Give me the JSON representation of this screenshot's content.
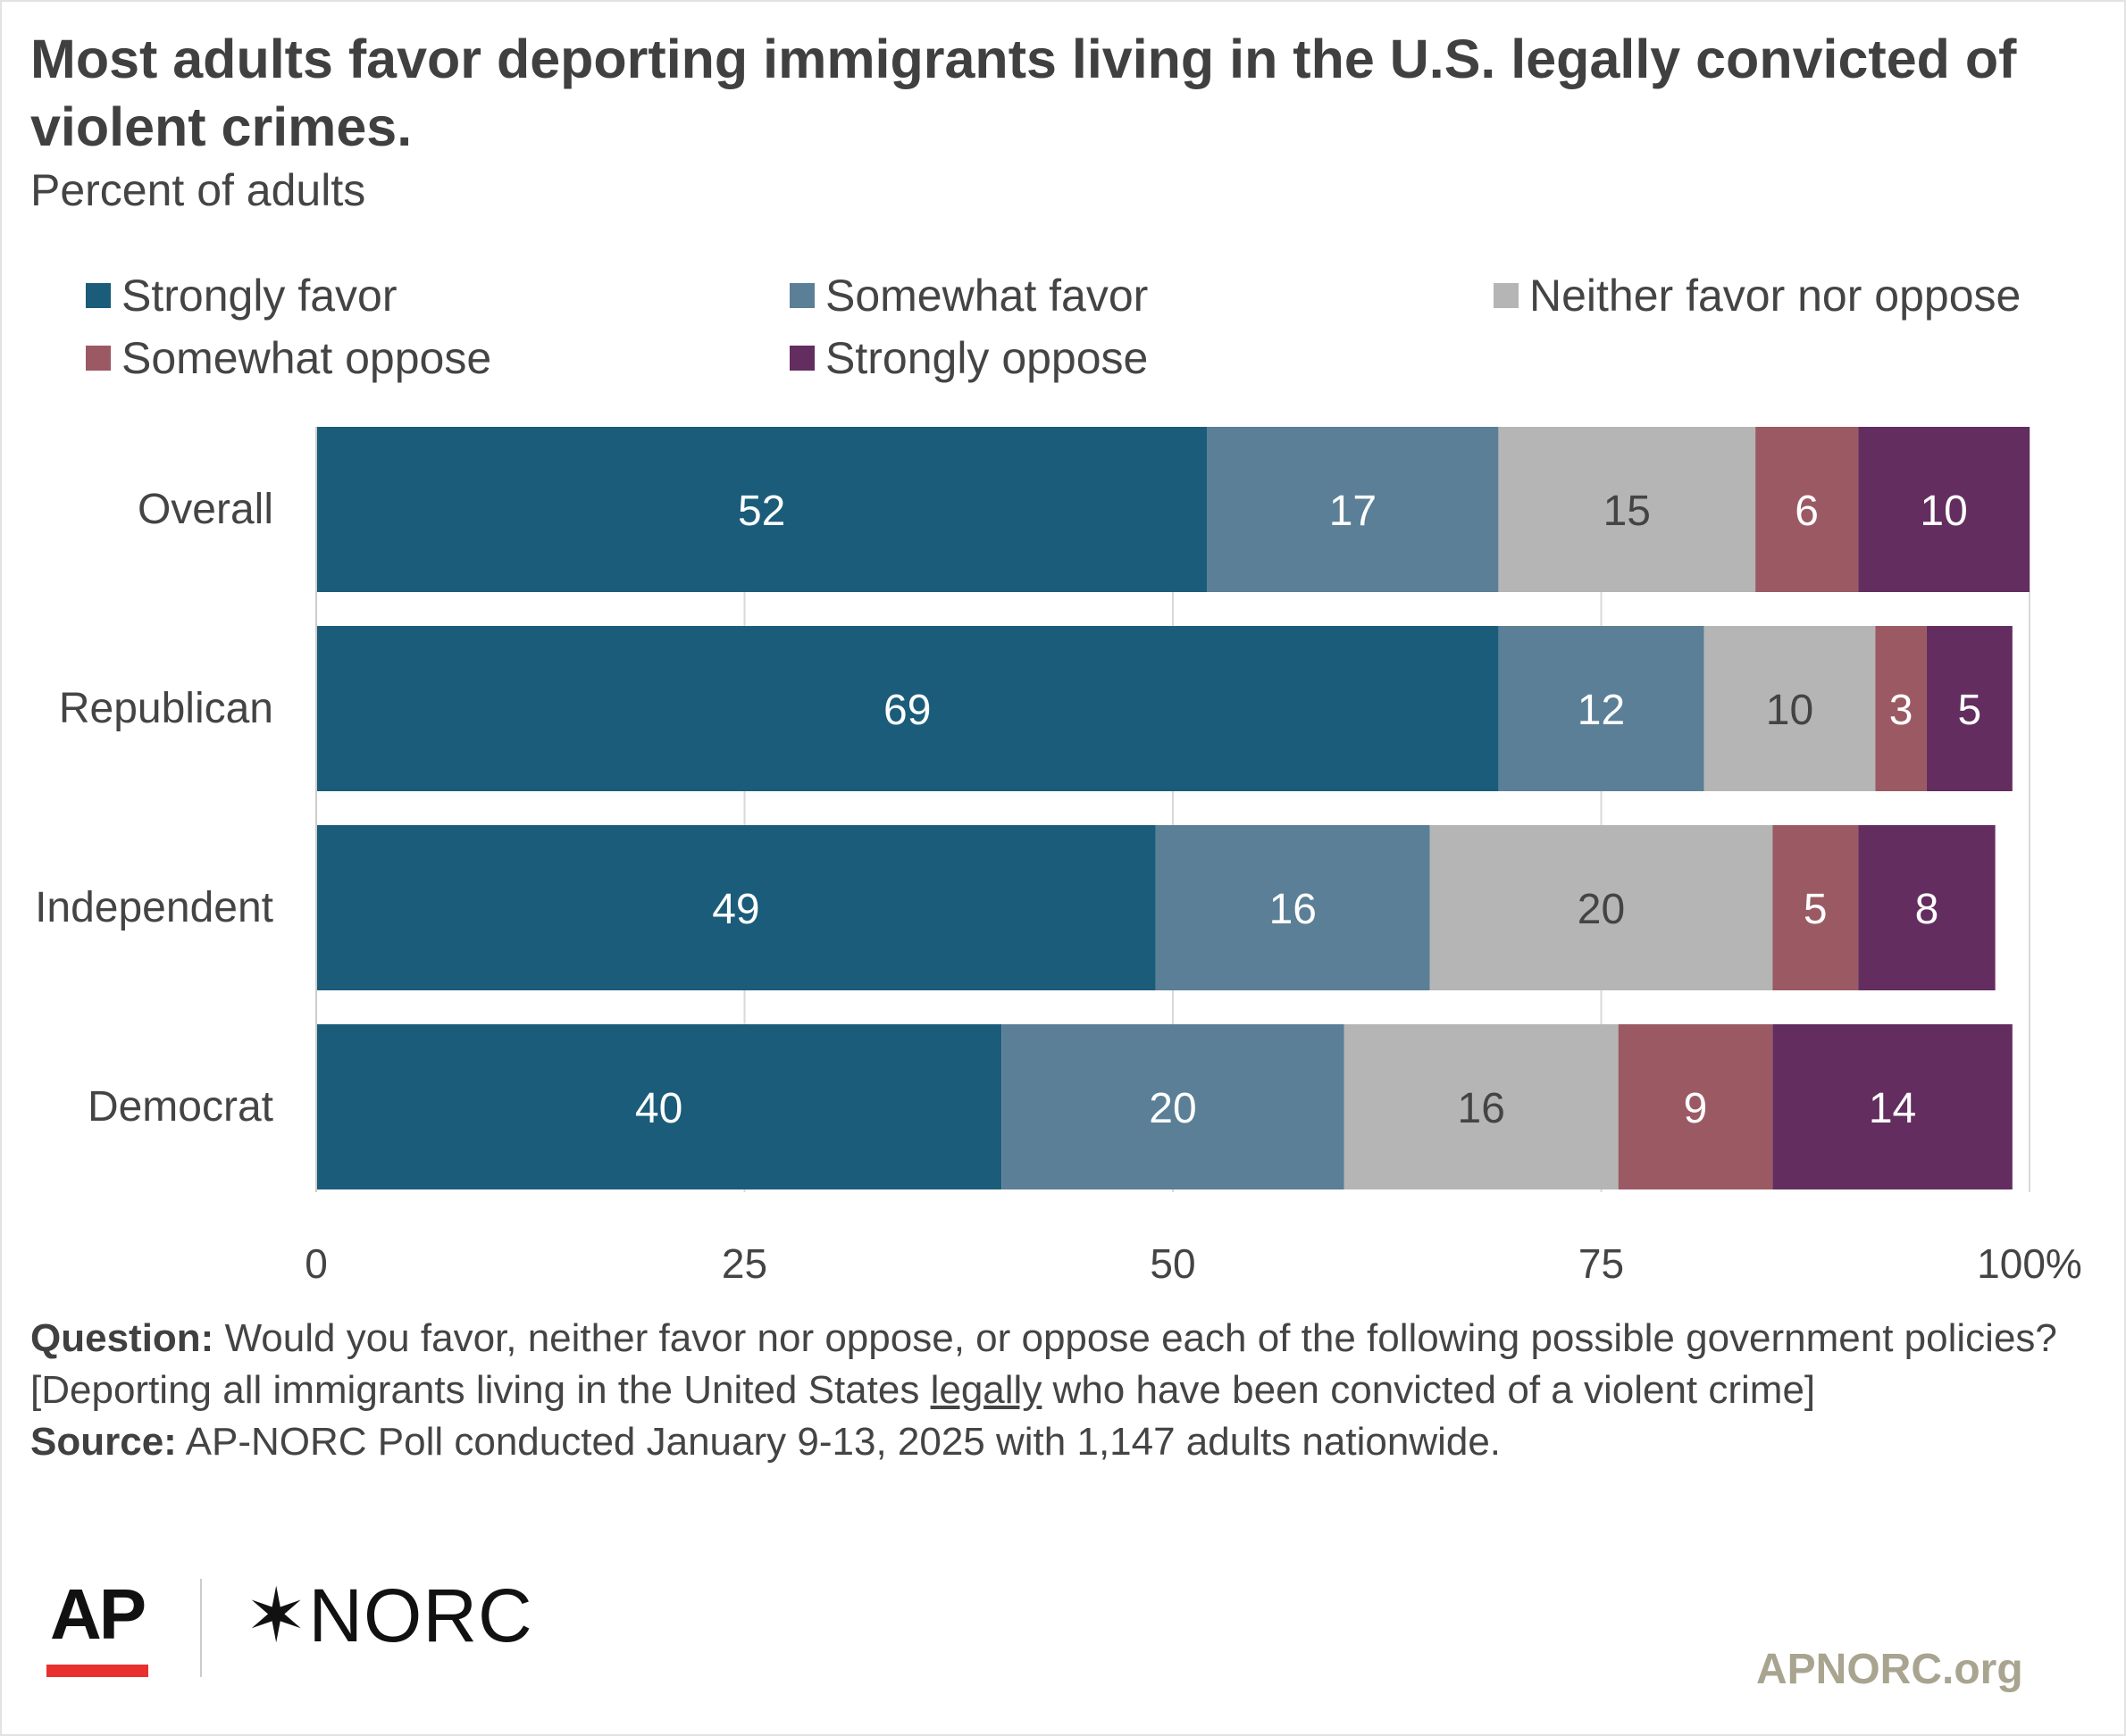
{
  "title": "Most adults favor deporting immigrants living in the U.S. legally convicted of violent crimes.",
  "subtitle": "Percent of adults",
  "notes": {
    "question_label": "Question:",
    "question_text_1": "Would you favor, neither favor nor oppose, or oppose each of the following possible government policies? [Deporting all immigrants living in the United States ",
    "question_emph": "legally",
    "question_text_2": " who have been convicted of a violent crime]",
    "source_label": "Source:",
    "source_text": "AP-NORC Poll conducted January 9-13, 2025 with 1,147 adults nationwide."
  },
  "logos": {
    "ap": "AP",
    "norc": "✶NORC"
  },
  "site": "APNORC.org",
  "chart_data": {
    "type": "bar",
    "orientation": "horizontal",
    "stacked": true,
    "categories": [
      "Overall",
      "Republican",
      "Independent",
      "Democrat"
    ],
    "series": [
      {
        "name": "Strongly favor",
        "values": [
          52,
          69,
          49,
          40
        ],
        "color": "#1a5c7a",
        "label_color": "#ffffff"
      },
      {
        "name": "Somewhat favor",
        "values": [
          17,
          12,
          16,
          20
        ],
        "color": "#5a7f96",
        "label_color": "#ffffff"
      },
      {
        "name": "Neither favor nor oppose",
        "values": [
          15,
          10,
          20,
          16
        ],
        "color": "#b5b5b5",
        "label_color": "#444444"
      },
      {
        "name": "Somewhat oppose",
        "values": [
          6,
          3,
          5,
          9
        ],
        "color": "#9b5a63",
        "label_color": "#ffffff"
      },
      {
        "name": "Strongly oppose",
        "values": [
          10,
          5,
          8,
          14
        ],
        "color": "#632d5f",
        "label_color": "#ffffff"
      }
    ],
    "xlim": [
      0,
      100
    ],
    "xticks": [
      0,
      25,
      50,
      75,
      100
    ],
    "xtick_labels": [
      "0",
      "25",
      "50",
      "75",
      "100%"
    ],
    "grid": true,
    "legend_position": "top"
  }
}
